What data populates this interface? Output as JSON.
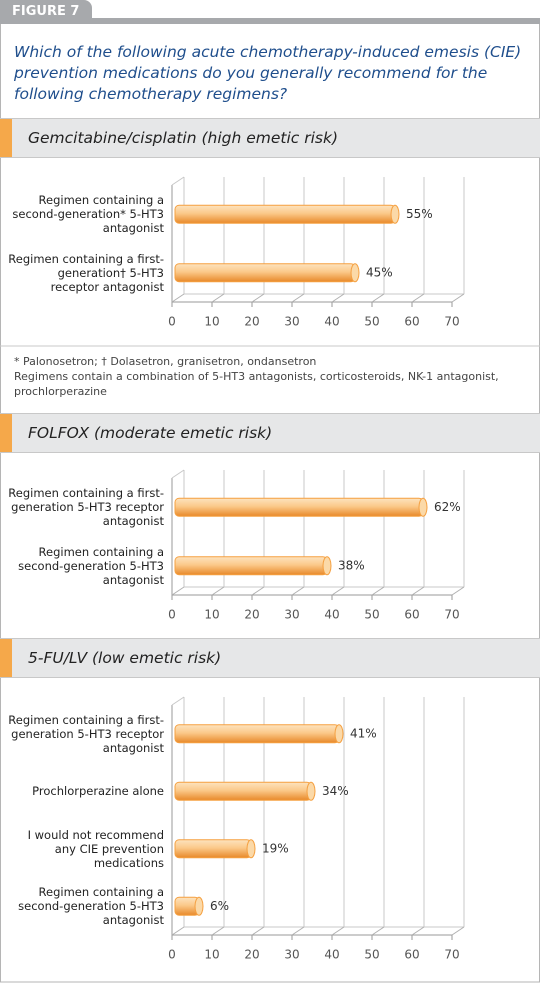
{
  "figure_label": "FIGURE 7",
  "question": "Which of the following acute chemotherapy-induced emesis (CIE) prevention medications do you generally recommend for the following chemotherapy regimens?",
  "footnotes": [
    "* Palonosetron; † Dolasetron, granisetron, ondansetron",
    "Regimens contain a combination of 5-HT3 antagonists, corticosteroids, NK-1 antagonist, prochlorperazine"
  ],
  "chart_data": [
    {
      "type": "bar",
      "orientation": "horizontal",
      "title": "Gemcitabine/cisplatin (high emetic risk)",
      "categories": [
        "Regimen containing a second-generation* 5-HT3 antagonist",
        "Regimen containing a first-generation† 5-HT3 receptor antagonist"
      ],
      "values": [
        55,
        45
      ],
      "value_labels": [
        "55%",
        "45%"
      ],
      "color": "#f5a040",
      "xlim": [
        0,
        70
      ],
      "xticks": [
        0,
        10,
        20,
        30,
        40,
        50,
        60,
        70
      ],
      "grid": true
    },
    {
      "type": "bar",
      "orientation": "horizontal",
      "title": "FOLFOX (moderate emetic risk)",
      "categories": [
        "Regimen containing a first-generation 5-HT3 receptor antagonist",
        "Regimen containing a second-generation 5-HT3 antagonist"
      ],
      "values": [
        62,
        38
      ],
      "value_labels": [
        "62%",
        "38%"
      ],
      "color": "#f5a040",
      "xlim": [
        0,
        70
      ],
      "xticks": [
        0,
        10,
        20,
        30,
        40,
        50,
        60,
        70
      ],
      "grid": true
    },
    {
      "type": "bar",
      "orientation": "horizontal",
      "title": "5-FU/LV (low emetic risk)",
      "categories": [
        "Regimen containing a first-generation 5-HT3 receptor antagonist",
        "Prochlorperazine alone",
        "I would not recommend any CIE prevention medications",
        "Regimen containing a second-generation 5-HT3 antagonist"
      ],
      "values": [
        41,
        34,
        19,
        6
      ],
      "value_labels": [
        "41%",
        "34%",
        "19%",
        "6%"
      ],
      "color": "#f5a040",
      "xlim": [
        0,
        70
      ],
      "xticks": [
        0,
        10,
        20,
        30,
        40,
        50,
        60,
        70
      ],
      "grid": true
    }
  ]
}
